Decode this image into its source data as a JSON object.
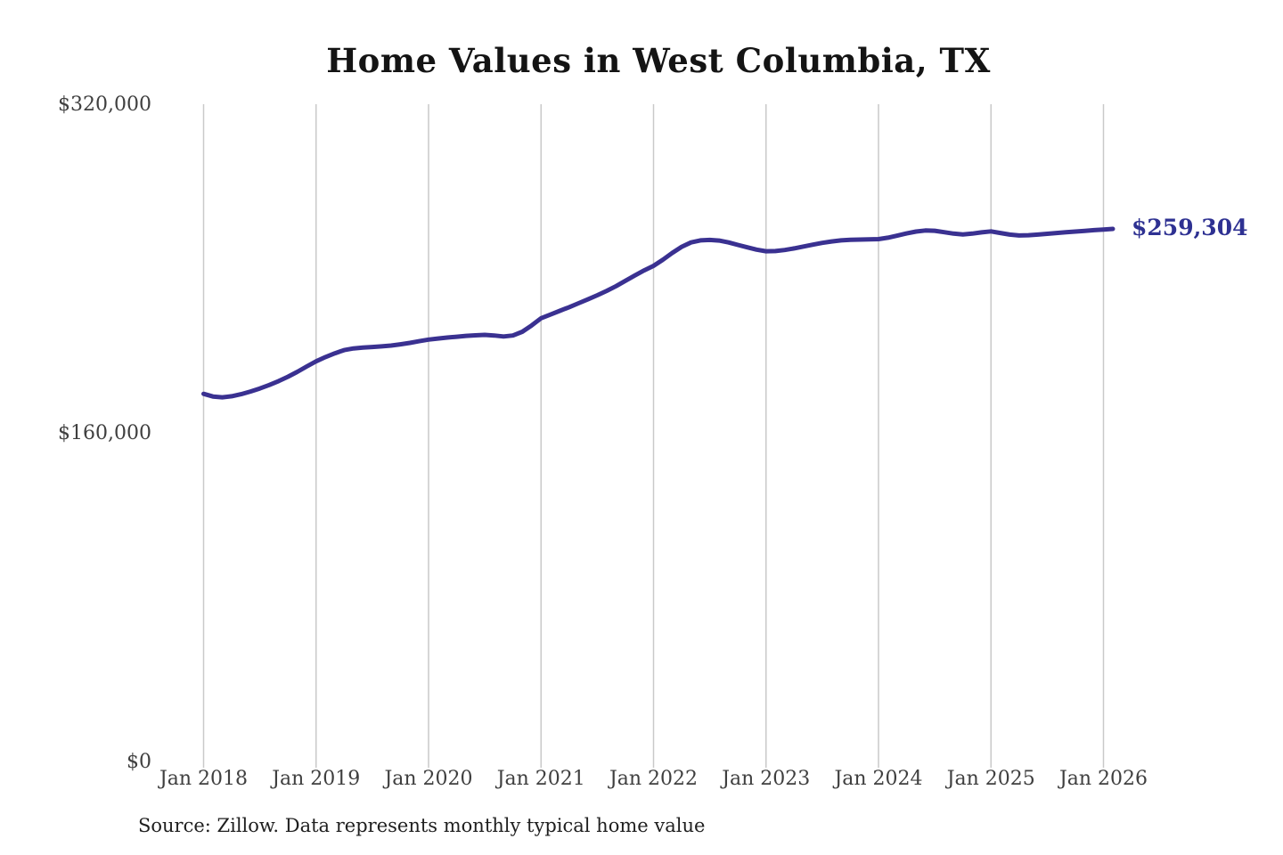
{
  "header": {
    "title": "Home Values in West Columbia, TX"
  },
  "annotation": {
    "latest_value_label": "$259,304"
  },
  "footer": {
    "source_note": "Source: Zillow. Data represents monthly typical home value"
  },
  "colors": {
    "line": "#3a3191",
    "annotation": "#2e3192",
    "gridline": "#c9c9c9",
    "axis_label": "#3f3f3f",
    "title": "#141414",
    "source": "#1f1f1f",
    "background": "#ffffff"
  },
  "chart_data": {
    "type": "line",
    "title": "Home Values in West Columbia, TX",
    "xlabel": "",
    "ylabel": "",
    "grid": "vertical-only",
    "legend": "none",
    "ylim": [
      0,
      320000
    ],
    "y_ticks": [
      0,
      160000,
      320000
    ],
    "y_tick_labels": [
      "$0",
      "$160,000",
      "$320,000"
    ],
    "x_tick_labels": [
      "Jan 2018",
      "Jan 2019",
      "Jan 2020",
      "Jan 2021",
      "Jan 2022",
      "Jan 2023",
      "Jan 2024",
      "Jan 2025",
      "Jan 2026"
    ],
    "end_label": "$259,304",
    "series": [
      {
        "name": "Monthly typical home value",
        "color": "#3a3191",
        "frequency": "monthly",
        "start_month": "Jan 2018",
        "end_month": "Feb 2026",
        "values": [
          179000,
          177700,
          177300,
          177800,
          178800,
          180100,
          181600,
          183300,
          185200,
          187300,
          189700,
          192300,
          194800,
          196900,
          198700,
          200300,
          201100,
          201500,
          201800,
          202100,
          202500,
          203100,
          203800,
          204600,
          205400,
          205900,
          206400,
          206800,
          207200,
          207500,
          207700,
          207400,
          206900,
          207400,
          209200,
          212300,
          215800,
          217600,
          219400,
          221200,
          223100,
          225000,
          227000,
          229100,
          231400,
          234000,
          236600,
          239100,
          241300,
          244300,
          247600,
          250600,
          252700,
          253700,
          253900,
          253600,
          252700,
          251500,
          250300,
          249200,
          248400,
          248500,
          249000,
          249800,
          250700,
          251600,
          252500,
          253200,
          253700,
          254000,
          254100,
          254200,
          254300,
          255000,
          256000,
          257100,
          258000,
          258500,
          258400,
          257700,
          257000,
          256600,
          257000,
          257600,
          258100,
          257300,
          256500,
          256100,
          256200,
          256500,
          256900,
          257300,
          257700,
          258000,
          258300,
          258700,
          259000,
          259304
        ]
      }
    ]
  }
}
